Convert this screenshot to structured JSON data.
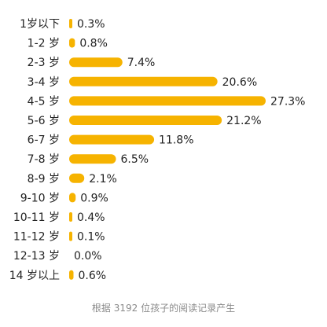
{
  "chart_data": {
    "type": "bar",
    "orientation": "horizontal",
    "categories": [
      "1岁以下",
      "1-2 岁",
      "2-3 岁",
      "3-4 岁",
      "4-5 岁",
      "5-6 岁",
      "6-7 岁",
      "7-8 岁",
      "8-9 岁",
      "9-10 岁",
      "10-11 岁",
      "11-12 岁",
      "12-13 岁",
      "14 岁以上"
    ],
    "values": [
      0.3,
      0.8,
      7.4,
      20.6,
      27.3,
      21.2,
      11.8,
      6.5,
      2.1,
      0.9,
      0.4,
      0.1,
      0.0,
      0.6
    ],
    "value_labels": [
      "0.3%",
      "0.8%",
      "7.4%",
      "20.6%",
      "27.3%",
      "21.2%",
      "11.8%",
      "6.5%",
      "2.1%",
      "0.9%",
      "0.4%",
      "0.1%",
      "0.0%",
      "0.6%"
    ],
    "unit": "%",
    "bar_color": "#F6B300",
    "grid": false,
    "legend": "none"
  },
  "footnote": "根据 3192 位孩子的阅读记录产生"
}
